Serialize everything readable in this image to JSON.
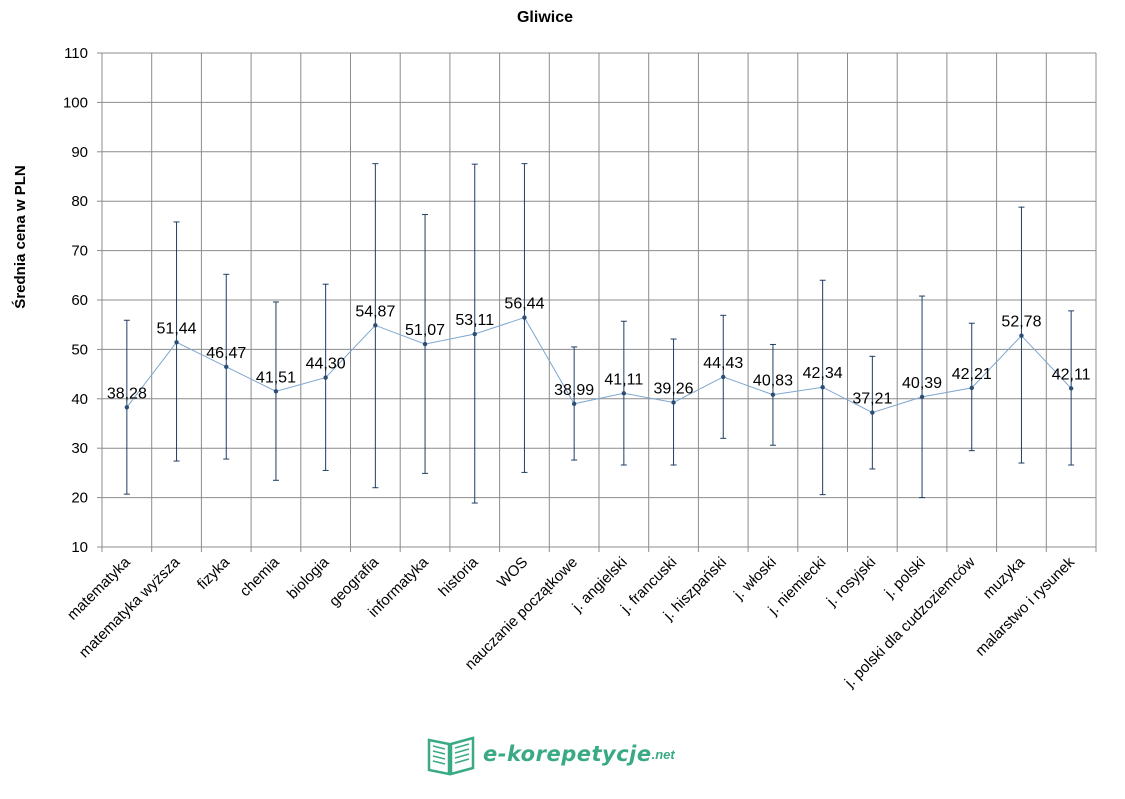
{
  "chart_data": {
    "type": "line",
    "title": "Gliwice",
    "ylabel": "Średnia cena w PLN",
    "xlabel": "",
    "ylim": [
      10,
      110
    ],
    "yticks": [
      "10",
      "20",
      "30",
      "40",
      "50",
      "60",
      "70",
      "80",
      "90",
      "100",
      "110"
    ],
    "grid": true,
    "legend": "none",
    "categories": [
      "matematyka",
      "matematyka wyższa",
      "fizyka",
      "chemia",
      "biologia",
      "geografia",
      "informatyka",
      "historia",
      "WOS",
      "nauczanie początkowe",
      "j. angielski",
      "j. francuski",
      "j. hiszpański",
      "j. włoski",
      "j. niemiecki",
      "j. rosyjski",
      "j. polski",
      "j. polski dla cudzoziemców",
      "muzyka",
      "malarstwo i rysunek"
    ],
    "values": [
      38.28,
      51.44,
      46.47,
      41.51,
      44.3,
      54.87,
      51.07,
      53.11,
      56.44,
      38.99,
      41.11,
      39.26,
      44.43,
      40.83,
      42.34,
      37.21,
      40.39,
      42.21,
      52.78,
      42.11
    ],
    "value_labels": [
      "38,28",
      "51,44",
      "46,47",
      "41,51",
      "44,30",
      "54,87",
      "51,07",
      "53,11",
      "56,44",
      "38,99",
      "41,11",
      "39,26",
      "44,43",
      "40,83",
      "42,34",
      "37,21",
      "40,39",
      "42,21",
      "52,78",
      "42,11"
    ],
    "error_low": [
      20.7,
      27.4,
      27.8,
      23.5,
      25.5,
      22.0,
      24.9,
      18.9,
      25.1,
      27.6,
      26.6,
      26.6,
      32.0,
      30.6,
      20.6,
      25.8,
      20.0,
      29.5,
      27.0,
      26.6
    ],
    "error_high": [
      55.9,
      75.8,
      65.2,
      59.6,
      63.2,
      87.6,
      77.3,
      87.5,
      87.6,
      50.5,
      55.7,
      52.1,
      56.9,
      51.0,
      64.0,
      48.6,
      60.8,
      55.3,
      78.8,
      57.8
    ],
    "colors": {
      "line": "#7fa7d0",
      "marker": "#2c4d75",
      "error_bar": "#1f3e63",
      "grid": "#8c8c8c"
    }
  },
  "logo": {
    "text": "e-korepetycje",
    "suffix": ".net",
    "color": "#3aaa85"
  }
}
